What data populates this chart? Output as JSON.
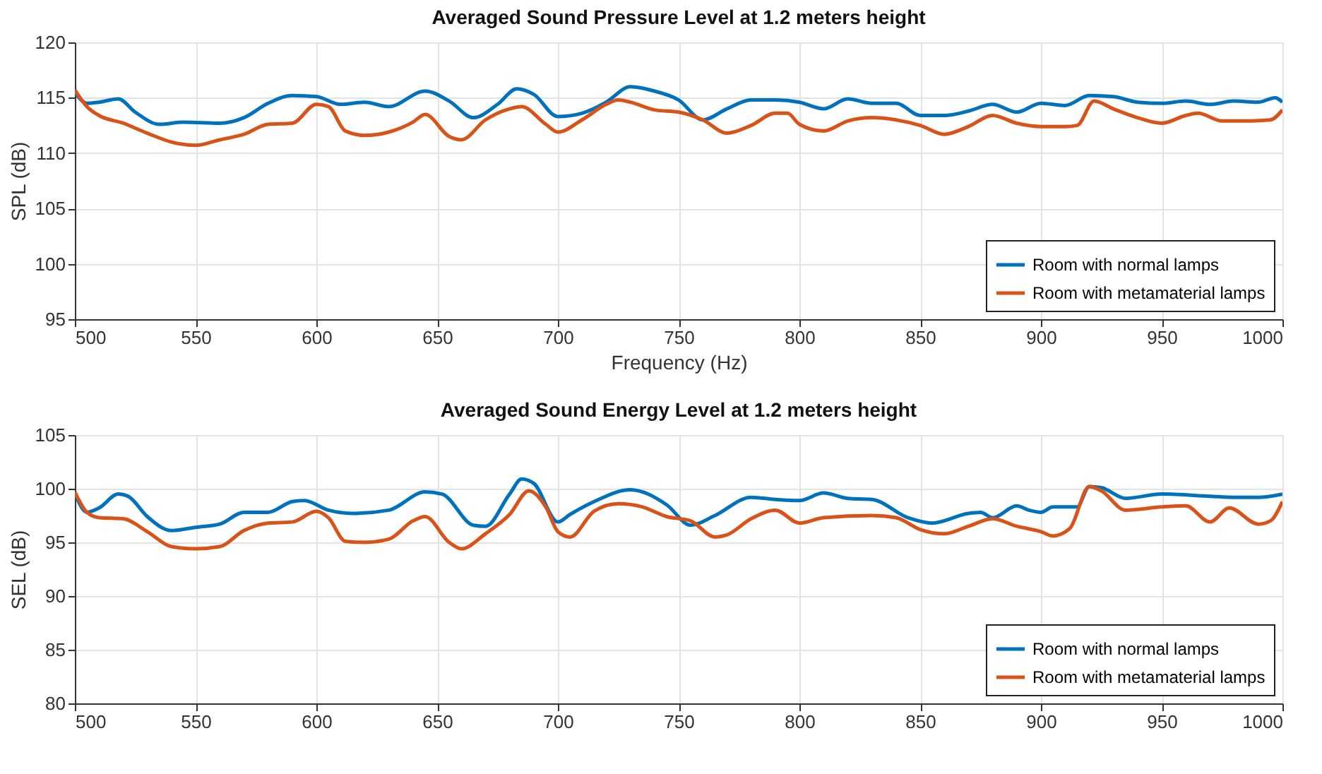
{
  "chart_data": [
    {
      "type": "line",
      "title": "Averaged Sound Pressure Level at 1.2 meters height",
      "xlabel": "Frequency (Hz)",
      "ylabel": "SPL (dB)",
      "xlim": [
        500,
        1000
      ],
      "xticks": [
        500,
        550,
        600,
        650,
        700,
        750,
        800,
        850,
        900,
        950,
        1000
      ],
      "ylim": [
        95,
        120
      ],
      "yticks": [
        95,
        100,
        105,
        110,
        115,
        120
      ],
      "grid": true,
      "legend": "bottom right",
      "marker": "none",
      "line_style": "solid",
      "series": [
        {
          "name": "Room with normal lamps",
          "color": "#0072bd",
          "x": [
            500,
            505,
            510,
            518,
            525,
            535,
            545,
            560,
            570,
            580,
            590,
            600,
            610,
            620,
            630,
            645,
            655,
            665,
            675,
            683,
            690,
            700,
            710,
            720,
            730,
            740,
            750,
            760,
            770,
            780,
            790,
            800,
            810,
            820,
            830,
            840,
            850,
            860,
            870,
            880,
            890,
            900,
            910,
            920,
            930,
            940,
            950,
            960,
            970,
            980,
            990,
            997,
            1000
          ],
          "values": [
            115.5,
            114.5,
            114.6,
            114.9,
            113.7,
            112.6,
            112.8,
            112.7,
            113.2,
            114.5,
            115.2,
            115.1,
            114.4,
            114.6,
            114.2,
            115.6,
            114.7,
            113.2,
            114.4,
            115.8,
            115.3,
            113.3,
            113.6,
            114.6,
            116.0,
            115.6,
            114.8,
            113.0,
            114.0,
            114.8,
            114.8,
            114.6,
            114.0,
            114.9,
            114.5,
            114.5,
            113.4,
            113.4,
            113.8,
            114.4,
            113.7,
            114.5,
            114.3,
            115.2,
            115.1,
            114.6,
            114.5,
            114.7,
            114.4,
            114.7,
            114.6,
            115.0,
            114.6
          ]
        },
        {
          "name": "Room with metamaterial lamps",
          "color": "#d95319",
          "x": [
            500,
            505,
            510,
            520,
            530,
            540,
            550,
            560,
            570,
            580,
            590,
            600,
            605,
            612,
            620,
            630,
            640,
            645,
            655,
            660,
            670,
            680,
            685,
            695,
            700,
            710,
            720,
            725,
            730,
            740,
            750,
            760,
            770,
            780,
            790,
            795,
            800,
            810,
            820,
            830,
            840,
            850,
            860,
            870,
            880,
            890,
            900,
            910,
            915,
            922,
            930,
            940,
            950,
            960,
            965,
            975,
            985,
            995,
            1000
          ],
          "values": [
            115.7,
            114.2,
            113.4,
            112.7,
            111.8,
            111.0,
            110.7,
            111.2,
            111.7,
            112.6,
            112.7,
            114.4,
            114.2,
            112.0,
            111.6,
            111.9,
            112.8,
            113.5,
            111.5,
            111.2,
            113.0,
            114.0,
            114.2,
            112.6,
            111.9,
            113.0,
            114.4,
            114.8,
            114.6,
            113.9,
            113.7,
            113.0,
            111.8,
            112.5,
            113.6,
            113.6,
            112.6,
            112.0,
            112.9,
            113.2,
            113.0,
            112.5,
            111.7,
            112.4,
            113.4,
            112.7,
            112.4,
            112.4,
            112.5,
            114.7,
            114.0,
            113.2,
            112.7,
            113.4,
            113.6,
            112.9,
            112.9,
            113.0,
            113.9
          ]
        }
      ]
    },
    {
      "type": "line",
      "title": "Averaged Sound Energy Level at 1.2 meters height",
      "ylabel": "SEL (dB)",
      "xlim": [
        500,
        1000
      ],
      "xticks": [
        500,
        550,
        600,
        650,
        700,
        750,
        800,
        850,
        900,
        950,
        1000
      ],
      "ylim": [
        80,
        105
      ],
      "yticks": [
        80,
        85,
        90,
        95,
        100,
        105
      ],
      "grid": true,
      "legend": "bottom right",
      "marker": "none",
      "line_style": "solid",
      "series": [
        {
          "name": "Room with normal lamps",
          "color": "#0072bd",
          "x": [
            500,
            505,
            510,
            518,
            522,
            530,
            540,
            550,
            560,
            570,
            580,
            590,
            595,
            605,
            615,
            630,
            645,
            652,
            665,
            670,
            680,
            685,
            690,
            700,
            705,
            715,
            730,
            745,
            755,
            765,
            780,
            790,
            800,
            810,
            820,
            830,
            845,
            855,
            870,
            875,
            880,
            890,
            895,
            900,
            905,
            915,
            920,
            925,
            935,
            950,
            970,
            980,
            990,
            1000
          ],
          "values": [
            99.6,
            97.8,
            98.2,
            99.5,
            99.3,
            97.4,
            96.1,
            96.4,
            96.7,
            97.8,
            97.8,
            98.8,
            98.9,
            98.0,
            97.7,
            98.0,
            99.7,
            99.5,
            96.6,
            96.5,
            99.5,
            100.9,
            100.5,
            96.9,
            97.6,
            98.8,
            99.9,
            98.5,
            96.6,
            97.5,
            99.2,
            99.0,
            98.9,
            99.6,
            99.1,
            99.0,
            97.3,
            96.8,
            97.7,
            97.8,
            97.3,
            98.4,
            98.0,
            97.8,
            98.3,
            98.3,
            100.2,
            100.1,
            99.1,
            99.5,
            99.3,
            99.2,
            99.2,
            99.5
          ]
        },
        {
          "name": "Room with metamaterial lamps",
          "color": "#d95319",
          "x": [
            500,
            505,
            510,
            520,
            530,
            540,
            550,
            560,
            570,
            580,
            590,
            600,
            605,
            612,
            620,
            630,
            640,
            645,
            655,
            660,
            670,
            680,
            688,
            695,
            700,
            705,
            715,
            725,
            735,
            745,
            755,
            765,
            770,
            780,
            790,
            800,
            810,
            830,
            840,
            850,
            860,
            870,
            880,
            890,
            900,
            905,
            912,
            920,
            925,
            935,
            950,
            960,
            970,
            978,
            990,
            995,
            1000
          ],
          "values": [
            99.7,
            97.8,
            97.3,
            97.2,
            96.0,
            94.6,
            94.4,
            94.6,
            96.1,
            96.8,
            96.9,
            97.9,
            97.3,
            95.1,
            95.0,
            95.3,
            97.0,
            97.4,
            95.0,
            94.4,
            95.8,
            97.6,
            99.8,
            98.3,
            96.0,
            95.5,
            97.9,
            98.6,
            98.3,
            97.4,
            97.0,
            95.5,
            95.7,
            97.2,
            98.0,
            96.8,
            97.3,
            97.5,
            97.3,
            96.2,
            95.8,
            96.5,
            97.2,
            96.5,
            96.0,
            95.6,
            96.3,
            100.2,
            99.8,
            98.0,
            98.3,
            98.4,
            96.9,
            98.2,
            96.7,
            97.0,
            98.8
          ]
        }
      ]
    }
  ]
}
